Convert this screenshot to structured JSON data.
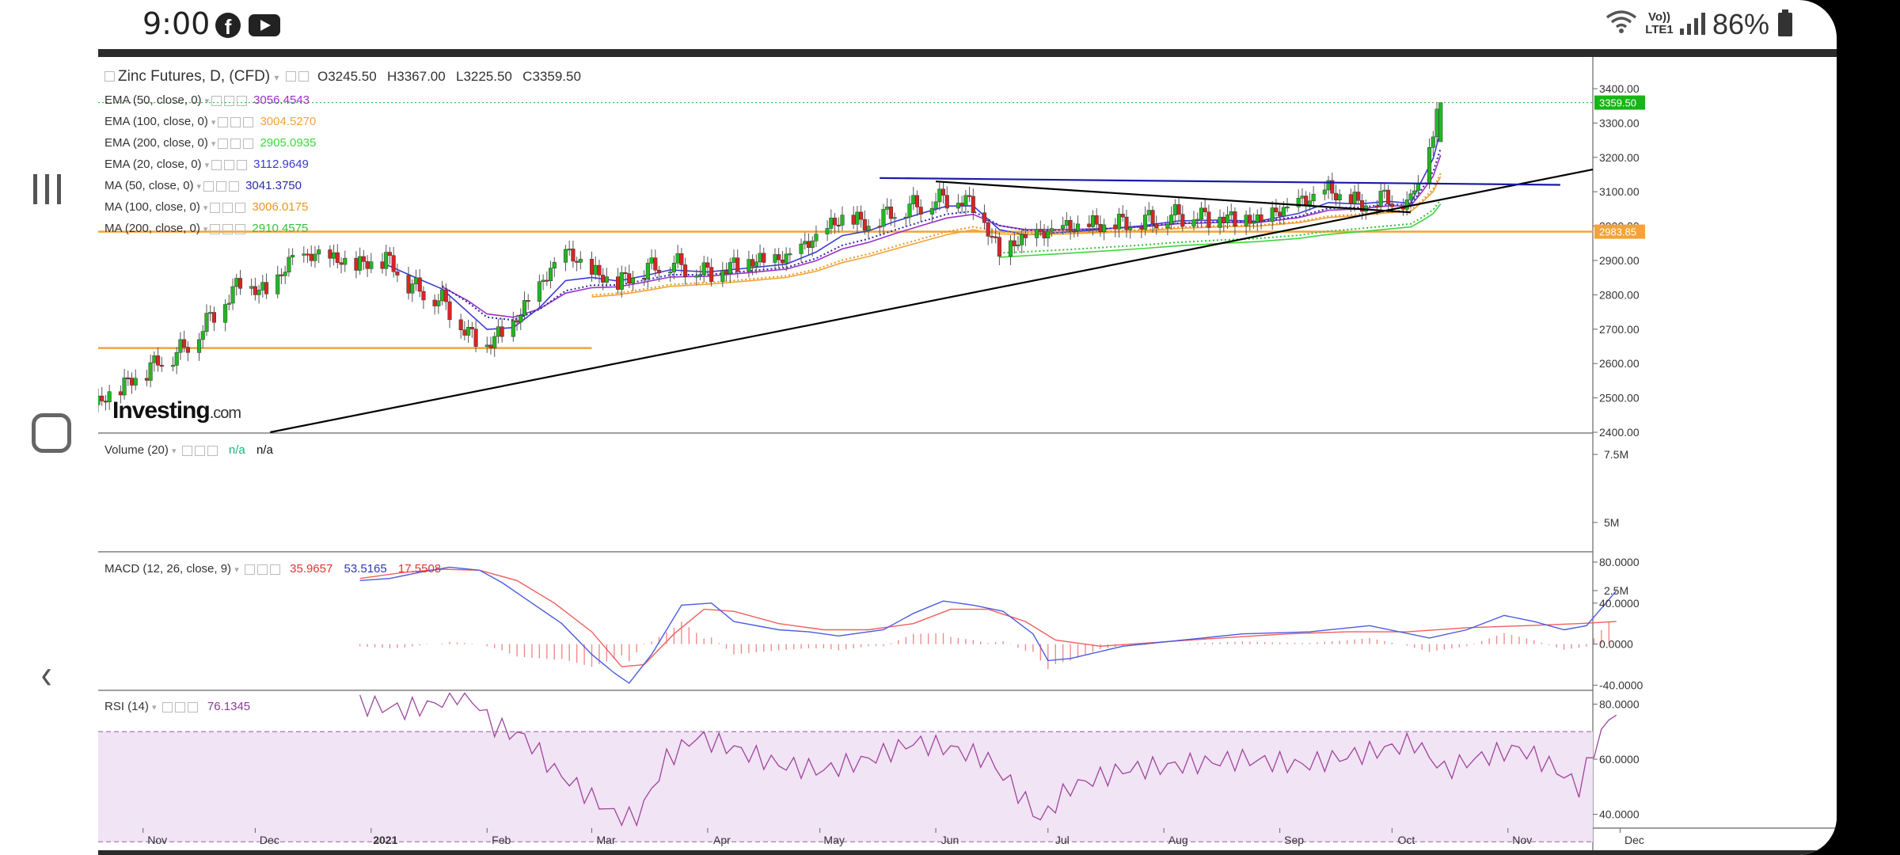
{
  "status_bar": {
    "time": "9:00",
    "network_label": "Vo)) LTE1",
    "battery": "86%",
    "icons": [
      "facebook-icon",
      "youtube-icon",
      "wifi-icon",
      "signal-icon",
      "battery-icon"
    ]
  },
  "nav_bar": {
    "icons": [
      "recent-apps-icon",
      "home-icon",
      "back-icon"
    ]
  },
  "chart_header": {
    "title": "Zinc Futures, D, (CFD)",
    "open": "O3245.50",
    "high": "H3367.00",
    "low": "L3225.50",
    "close": "C3359.50"
  },
  "indicators": [
    {
      "label": "EMA (50, close, 0)",
      "value": "3056.4543",
      "color": "#9b30c8"
    },
    {
      "label": "EMA (100, close, 0)",
      "value": "3004.5270",
      "color": "#f2a33a"
    },
    {
      "label": "EMA (200, close, 0)",
      "value": "2905.0935",
      "color": "#3cd63c"
    },
    {
      "label": "EMA (20, close, 0)",
      "value": "3112.9649",
      "color": "#3a3ad6"
    },
    {
      "label": "MA (50, close, 0)",
      "value": "3041.3750",
      "color": "#2a2aa6"
    },
    {
      "label": "MA (100, close, 0)",
      "value": "3006.0175",
      "color": "#e8961e"
    },
    {
      "label": "MA (200, close, 0)",
      "value": "2910.4575",
      "color": "#34c234"
    }
  ],
  "logo": {
    "brand": "Investing",
    "suffix": ".com"
  },
  "price_axis": {
    "ticks": [
      "3400.00",
      "3300.00",
      "3200.00",
      "3100.00",
      "3000.00",
      "2900.00",
      "2800.00",
      "2700.00",
      "2600.00",
      "2500.00",
      "2400.00"
    ],
    "last_price": "3359.50",
    "level_label": "2983.85",
    "last_color": "#17b517",
    "level_color": "#f2a33a"
  },
  "volume": {
    "label": "Volume (20)",
    "value1": "n/a",
    "value2": "n/a",
    "ticks": [
      "7.5M",
      "5M",
      "2.5M"
    ]
  },
  "macd": {
    "label": "MACD (12, 26, close, 9)",
    "v1": "35.9657",
    "v2": "53.5165",
    "v3": "17.5508",
    "ticks": [
      "80.0000",
      "40.0000",
      "0.0000",
      "-40.0000"
    ]
  },
  "rsi": {
    "label": "RSI (14)",
    "value": "76.1345",
    "ticks": [
      "80.0000",
      "60.0000",
      "40.0000"
    ]
  },
  "time_axis": {
    "ticks": [
      "Nov",
      "Dec",
      "2021",
      "Feb",
      "Mar",
      "Apr",
      "May",
      "Jun",
      "Jul",
      "Aug",
      "Sep",
      "Oct",
      "Nov",
      "Dec"
    ]
  },
  "chart_data": {
    "type": "candlestick",
    "title": "Zinc Futures, D, (CFD)",
    "x_range": [
      "2020-10-20",
      "2021-12-28"
    ],
    "ylim": [
      2400,
      3420
    ],
    "close_series": [
      [
        "2020-10-20",
        2480
      ],
      [
        "2020-10-28",
        2540
      ],
      [
        "2020-11-05",
        2600
      ],
      [
        "2020-11-12",
        2640
      ],
      [
        "2020-11-20",
        2740
      ],
      [
        "2020-11-27",
        2830
      ],
      [
        "2020-12-04",
        2800
      ],
      [
        "2020-12-11",
        2900
      ],
      [
        "2020-12-18",
        2910
      ],
      [
        "2020-12-28",
        2880
      ],
      [
        "2021-01-05",
        2900
      ],
      [
        "2021-01-12",
        2820
      ],
      [
        "2021-01-20",
        2780
      ],
      [
        "2021-01-27",
        2680
      ],
      [
        "2021-02-01",
        2650
      ],
      [
        "2021-02-08",
        2710
      ],
      [
        "2021-02-15",
        2820
      ],
      [
        "2021-02-22",
        2920
      ],
      [
        "2021-03-01",
        2860
      ],
      [
        "2021-03-08",
        2830
      ],
      [
        "2021-03-15",
        2870
      ],
      [
        "2021-03-22",
        2890
      ],
      [
        "2021-04-01",
        2860
      ],
      [
        "2021-04-12",
        2890
      ],
      [
        "2021-04-22",
        2900
      ],
      [
        "2021-04-30",
        2960
      ],
      [
        "2021-05-07",
        3020
      ],
      [
        "2021-05-14",
        3000
      ],
      [
        "2021-05-21",
        3040
      ],
      [
        "2021-05-28",
        3060
      ],
      [
        "2021-06-04",
        3080
      ],
      [
        "2021-06-11",
        3060
      ],
      [
        "2021-06-18",
        2920
      ],
      [
        "2021-06-25",
        2960
      ],
      [
        "2021-07-06",
        2990
      ],
      [
        "2021-07-16",
        3000
      ],
      [
        "2021-07-26",
        3010
      ],
      [
        "2021-08-05",
        3030
      ],
      [
        "2021-08-16",
        3020
      ],
      [
        "2021-08-26",
        3010
      ],
      [
        "2021-09-06",
        3060
      ],
      [
        "2021-09-14",
        3100
      ],
      [
        "2021-09-22",
        3060
      ],
      [
        "2021-09-30",
        3080
      ],
      [
        "2021-10-06",
        3060
      ],
      [
        "2021-10-09",
        3200
      ],
      [
        "2021-10-12",
        3260
      ],
      [
        "2021-10-14",
        3359.5
      ]
    ],
    "ema_20_last": 3112.9649,
    "ema_50_last": 3056.4543,
    "ema_100_last": 3004.527,
    "ema_200_last": 2905.0935,
    "ma_50_last": 3041.375,
    "ma_100_last": 3006.0175,
    "ma_200_last": 2910.4575,
    "horizontal_levels": [
      {
        "price": 2983.85,
        "color": "#f2a33a"
      },
      {
        "price": 2645,
        "color": "#f2a33a",
        "end": "2021-03-01"
      }
    ],
    "trendlines": [
      {
        "from": [
          "2020-12-05",
          2400
        ],
        "to": [
          "2021-12-10",
          3200
        ],
        "color": "#000000"
      },
      {
        "from": [
          "2021-05-17",
          3140
        ],
        "to": [
          "2021-11-15",
          3120
        ],
        "color": "#1a1aa8"
      },
      {
        "from": [
          "2021-06-01",
          3130
        ],
        "to": [
          "2021-10-06",
          3040
        ],
        "color": "#000000"
      }
    ],
    "macd": {
      "ylim": [
        -45,
        90
      ],
      "macd_series": [
        [
          -8,
          62
        ],
        [
          0,
          64
        ],
        [
          8,
          70
        ],
        [
          16,
          75
        ],
        [
          24,
          72
        ],
        [
          30,
          60
        ],
        [
          38,
          40
        ],
        [
          46,
          20
        ],
        [
          54,
          -10
        ],
        [
          60,
          -28
        ],
        [
          64,
          -38
        ],
        [
          70,
          -10
        ],
        [
          78,
          38
        ],
        [
          86,
          40
        ],
        [
          92,
          22
        ],
        [
          104,
          14
        ],
        [
          112,
          12
        ],
        [
          120,
          8
        ],
        [
          132,
          14
        ],
        [
          140,
          30
        ],
        [
          148,
          42
        ],
        [
          156,
          38
        ],
        [
          164,
          32
        ],
        [
          172,
          10
        ],
        [
          176,
          -16
        ],
        [
          182,
          -14
        ],
        [
          196,
          -2
        ],
        [
          212,
          4
        ],
        [
          228,
          10
        ],
        [
          246,
          12
        ],
        [
          262,
          18
        ],
        [
          278,
          6
        ],
        [
          288,
          14
        ],
        [
          298,
          28
        ],
        [
          306,
          22
        ],
        [
          314,
          14
        ],
        [
          320,
          18
        ],
        [
          328,
          52
        ]
      ],
      "signal_series": [
        [
          -8,
          64
        ],
        [
          4,
          70
        ],
        [
          14,
          73
        ],
        [
          24,
          72
        ],
        [
          34,
          62
        ],
        [
          44,
          40
        ],
        [
          54,
          12
        ],
        [
          62,
          -22
        ],
        [
          68,
          -20
        ],
        [
          76,
          10
        ],
        [
          84,
          34
        ],
        [
          92,
          32
        ],
        [
          104,
          20
        ],
        [
          116,
          14
        ],
        [
          128,
          14
        ],
        [
          140,
          20
        ],
        [
          150,
          34
        ],
        [
          160,
          34
        ],
        [
          170,
          22
        ],
        [
          178,
          4
        ],
        [
          190,
          -2
        ],
        [
          206,
          2
        ],
        [
          222,
          6
        ],
        [
          240,
          10
        ],
        [
          256,
          12
        ],
        [
          272,
          12
        ],
        [
          288,
          16
        ],
        [
          304,
          18
        ],
        [
          318,
          20
        ],
        [
          328,
          22
        ]
      ]
    },
    "rsi": {
      "ylim": [
        35,
        85
      ],
      "overbought": 70,
      "oversold": 30,
      "series": [
        [
          -8,
          80
        ],
        [
          4,
          78
        ],
        [
          12,
          80
        ],
        [
          20,
          85
        ],
        [
          28,
          72
        ],
        [
          36,
          68
        ],
        [
          44,
          56
        ],
        [
          52,
          48
        ],
        [
          60,
          40
        ],
        [
          66,
          38
        ],
        [
          74,
          60
        ],
        [
          82,
          68
        ],
        [
          92,
          64
        ],
        [
          104,
          58
        ],
        [
          116,
          56
        ],
        [
          128,
          60
        ],
        [
          140,
          66
        ],
        [
          150,
          64
        ],
        [
          160,
          60
        ],
        [
          168,
          48
        ],
        [
          174,
          38
        ],
        [
          182,
          50
        ],
        [
          196,
          56
        ],
        [
          212,
          58
        ],
        [
          228,
          60
        ],
        [
          244,
          58
        ],
        [
          260,
          62
        ],
        [
          274,
          66
        ],
        [
          282,
          56
        ],
        [
          290,
          60
        ],
        [
          302,
          64
        ],
        [
          310,
          58
        ],
        [
          318,
          50
        ],
        [
          324,
          70
        ],
        [
          328,
          76
        ]
      ]
    }
  }
}
